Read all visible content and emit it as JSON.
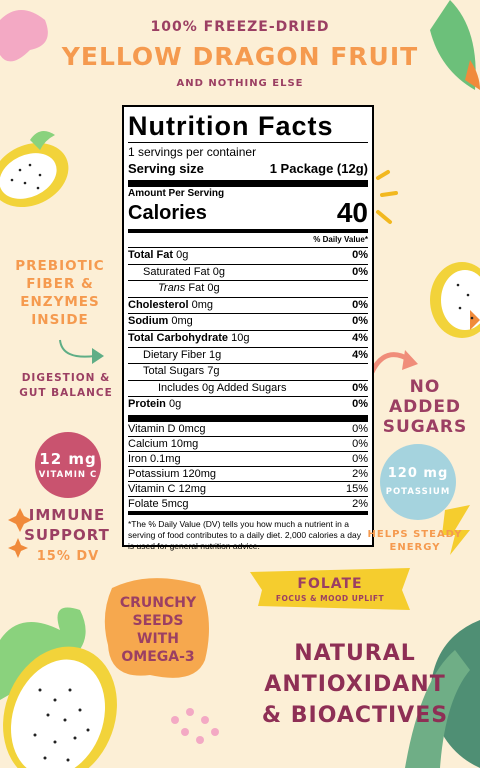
{
  "header": {
    "kicker": "100% FREEZE-DRIED",
    "title": "YELLOW DRAGON FRUIT",
    "subtitle": "AND NOTHING ELSE"
  },
  "nutrition": {
    "title": "Nutrition Facts",
    "servings": "1 servings per container",
    "serving_size_label": "Serving size",
    "serving_size": "1 Package (12g)",
    "amount_per_serving": "Amount Per Serving",
    "calories_label": "Calories",
    "calories": "40",
    "dv_header": "% Daily Value*",
    "rows": [
      {
        "name": "Total Fat",
        "amount": "0g",
        "dv": "0%"
      },
      {
        "name": "Saturated Fat",
        "amount": "0g",
        "dv": "0%"
      },
      {
        "name": "Trans",
        "amount": "Fat 0g"
      },
      {
        "name": "Cholesterol",
        "amount": "0mg",
        "dv": "0%"
      },
      {
        "name": "Sodium",
        "amount": "0mg",
        "dv": "0%"
      },
      {
        "name": "Total Carbohydrate",
        "amount": "10g",
        "dv": "4%"
      },
      {
        "name": "Dietary Fiber",
        "amount": "1g",
        "dv": "4%"
      },
      {
        "name": "Total Sugars",
        "amount": "7g"
      },
      {
        "name": "Includes",
        "amount": "0g Added Sugars",
        "dv": "0%"
      },
      {
        "name": "Protein",
        "amount": "0g",
        "dv": "0%"
      }
    ],
    "vitamins": [
      {
        "name": "Vitamin D 0mcg",
        "dv": "0%"
      },
      {
        "name": "Calcium 10mg",
        "dv": "0%"
      },
      {
        "name": "Iron 0.1mg",
        "dv": "0%"
      },
      {
        "name": "Potassium 120mg",
        "dv": "2%"
      },
      {
        "name": "Vitamin C 12mg",
        "dv": "15%"
      },
      {
        "name": "Folate 5mcg",
        "dv": "2%"
      }
    ],
    "footnote": "*The % Daily Value (DV) tells you how much a nutrient in a serving of food contributes to a daily diet. 2,000 calories a day is used for general nutrition advice."
  },
  "callouts": {
    "prebiotic": [
      "PREBIOTIC",
      "FIBER &",
      "ENZYMES",
      "INSIDE"
    ],
    "digestion": [
      "DIGESTION &",
      "GUT BALANCE"
    ],
    "vitamin_c": {
      "amount": "12 mg",
      "label": "VITAMIN C"
    },
    "immune": [
      "IMMUNE",
      "SUPPORT"
    ],
    "immune_dv": "15% DV",
    "no_sugar": [
      "NO",
      "ADDED",
      "SUGARS"
    ],
    "potassium": {
      "amount": "120 mg",
      "label": "POTASSIUM"
    },
    "energy": [
      "HELPS STEADY",
      "ENERGY"
    ],
    "folate": {
      "title": "FOLATE",
      "subtitle": "FOCUS & MOOD UPLIFT"
    },
    "seeds": [
      "CRUNCHY",
      "SEEDS",
      "WITH",
      "OMEGA-3"
    ],
    "antioxidant": [
      "NATURAL",
      "ANTIOXIDANT",
      "& BIOACTIVES"
    ]
  }
}
